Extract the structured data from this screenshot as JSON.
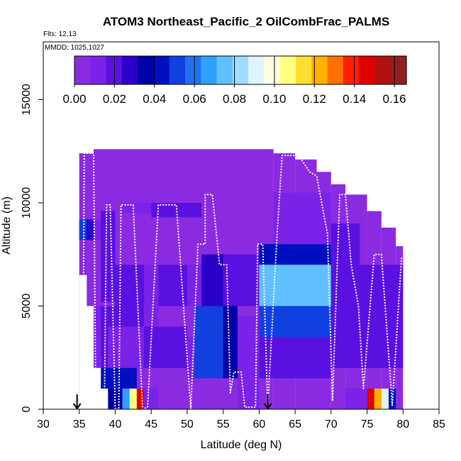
{
  "chart_data": {
    "type": "heatmap",
    "title": "ATOM3 Northeast_Pacific_2 OilCombFrac_PALMS",
    "annotations": [
      "Flts: 12,13",
      "MMDD: 1025,1027"
    ],
    "xlabel": "Latitude (deg N)",
    "ylabel": "Altitude (m)",
    "xlim": [
      30,
      85
    ],
    "ylim": [
      0,
      17800
    ],
    "x_ticks": [
      "30",
      "35",
      "40",
      "45",
      "50",
      "55",
      "60",
      "65",
      "70",
      "75",
      "80",
      "85"
    ],
    "y_ticks": [
      "0",
      "5000",
      "10000",
      "15000"
    ],
    "colorbar": {
      "placement": "top-inside",
      "range": [
        0.0,
        0.166
      ],
      "tick_values": [
        0.0,
        0.02,
        0.04,
        0.06,
        0.08,
        0.1,
        0.12,
        0.14,
        0.16
      ],
      "tick_labels": [
        "0.00",
        "0.02",
        "0.04",
        "0.06",
        "0.08",
        "0.10",
        "0.12",
        "0.14",
        "0.16"
      ],
      "colors": [
        "#8a2be2",
        "#7a22e8",
        "#5a10e0",
        "#2a00c8",
        "#0000a8",
        "#0010c0",
        "#1040e0",
        "#2070f0",
        "#30a0ff",
        "#60c0ff",
        "#a0dcff",
        "#e0f4ff",
        "#ffffe0",
        "#ffff80",
        "#ffe030",
        "#ffb000",
        "#ff7000",
        "#ff2000",
        "#e00000",
        "#b01010",
        "#902020"
      ]
    },
    "domain_columns": [
      {
        "lat0": 35,
        "lat1": 37,
        "alt_top": 12400
      },
      {
        "lat0": 37,
        "lat1": 62,
        "alt_top": 12600
      },
      {
        "lat0": 62,
        "lat1": 65,
        "alt_top": 12400
      },
      {
        "lat0": 65,
        "lat1": 68,
        "alt_top": 12100
      },
      {
        "lat0": 68,
        "lat1": 70,
        "alt_top": 11500
      },
      {
        "lat0": 70,
        "lat1": 72,
        "alt_top": 10900
      },
      {
        "lat0": 72,
        "lat1": 75,
        "alt_top": 10400
      },
      {
        "lat0": 75,
        "lat1": 77,
        "alt_top": 9600
      },
      {
        "lat0": 77,
        "lat1": 79,
        "alt_top": 8800
      },
      {
        "lat0": 79,
        "lat1": 80,
        "alt_top": 7900
      }
    ],
    "domain_bottom_edge": [
      {
        "lat0": 35,
        "lat1": 36,
        "alt_bottom": 6500
      },
      {
        "lat0": 36,
        "lat1": 37,
        "alt_bottom": 5000
      },
      {
        "lat0": 37,
        "lat1": 38,
        "alt_bottom": 2500
      },
      {
        "lat0": 38,
        "lat1": 39,
        "alt_bottom": 1000
      },
      {
        "lat0": 39,
        "lat1": 80,
        "alt_bottom": 0
      }
    ],
    "cells": [
      {
        "lat0": 35,
        "lat1": 36,
        "alt0": 8200,
        "alt1": 9200,
        "value": 0.05
      },
      {
        "lat0": 36,
        "lat1": 37,
        "alt0": 8200,
        "alt1": 9200,
        "value": 0.03
      },
      {
        "lat0": 37,
        "lat1": 38,
        "alt0": 8200,
        "alt1": 9200,
        "value": 0.008
      },
      {
        "lat0": 38,
        "lat1": 39,
        "alt0": 5200,
        "alt1": 9600,
        "value": 0.02
      },
      {
        "lat0": 39,
        "lat1": 40,
        "alt0": 5200,
        "alt1": 9600,
        "value": 0.018
      },
      {
        "lat0": 37,
        "lat1": 38,
        "alt0": 2000,
        "alt1": 5000,
        "value": 0.012
      },
      {
        "lat0": 38,
        "lat1": 40,
        "alt0": 2000,
        "alt1": 5000,
        "value": 0.022
      },
      {
        "lat0": 40,
        "lat1": 42,
        "alt0": 4000,
        "alt1": 7000,
        "value": 0.016
      },
      {
        "lat0": 42,
        "lat1": 44,
        "alt0": 4000,
        "alt1": 7000,
        "value": 0.022
      },
      {
        "lat0": 44,
        "lat1": 46,
        "alt0": 4000,
        "alt1": 7000,
        "value": 0.014
      },
      {
        "lat0": 46,
        "lat1": 50,
        "alt0": 5000,
        "alt1": 7000,
        "value": 0.02
      },
      {
        "lat0": 50,
        "lat1": 52,
        "alt0": 5000,
        "alt1": 7000,
        "value": 0.014
      },
      {
        "lat0": 52,
        "lat1": 56,
        "alt0": 5000,
        "alt1": 7500,
        "value": 0.026
      },
      {
        "lat0": 55,
        "lat1": 60,
        "alt0": 5000,
        "alt1": 7500,
        "value": 0.022
      },
      {
        "lat0": 39,
        "lat1": 44,
        "alt0": 2000,
        "alt1": 4000,
        "value": 0.012
      },
      {
        "lat0": 44,
        "lat1": 50,
        "alt0": 2000,
        "alt1": 4000,
        "value": 0.016
      },
      {
        "lat0": 50,
        "lat1": 53,
        "alt0": 1500,
        "alt1": 3500,
        "value": 0.01
      },
      {
        "lat0": 38,
        "lat1": 43,
        "alt0": 1000,
        "alt1": 2000,
        "value": 0.04
      },
      {
        "lat0": 39,
        "lat1": 41,
        "alt0": 0,
        "alt1": 1000,
        "value": 0.035
      },
      {
        "lat0": 41,
        "lat1": 42,
        "alt0": 0,
        "alt1": 1000,
        "value": 0.07
      },
      {
        "lat0": 42,
        "lat1": 43,
        "alt0": 0,
        "alt1": 1000,
        "value": 0.11
      },
      {
        "lat0": 43,
        "lat1": 44,
        "alt0": 0,
        "alt1": 1000,
        "value": 0.15
      },
      {
        "lat0": 44,
        "lat1": 46,
        "alt0": 0,
        "alt1": 1000,
        "value": 0.01
      },
      {
        "lat0": 41,
        "lat1": 45,
        "alt0": 9500,
        "alt1": 10000,
        "value": 0.012
      },
      {
        "lat0": 45,
        "lat1": 52,
        "alt0": 9300,
        "alt1": 10000,
        "value": 0.018
      },
      {
        "lat0": 51,
        "lat1": 55,
        "alt0": 1500,
        "alt1": 5000,
        "value": 0.055
      },
      {
        "lat0": 55,
        "lat1": 57,
        "alt0": 1500,
        "alt1": 5000,
        "value": 0.035
      },
      {
        "lat0": 57,
        "lat1": 60,
        "alt0": 0,
        "alt1": 4500,
        "value": 0.014
      },
      {
        "lat0": 60,
        "lat1": 70,
        "alt0": 7000,
        "alt1": 8000,
        "value": 0.045
      },
      {
        "lat0": 60,
        "lat1": 70,
        "alt0": 5000,
        "alt1": 7000,
        "value": 0.072
      },
      {
        "lat0": 60,
        "lat1": 70,
        "alt0": 3500,
        "alt1": 5000,
        "value": 0.05
      },
      {
        "lat0": 60,
        "lat1": 70,
        "alt0": 1500,
        "alt1": 3500,
        "value": 0.018
      },
      {
        "lat0": 62,
        "lat1": 70,
        "alt0": 8000,
        "alt1": 10500,
        "value": 0.012
      },
      {
        "lat0": 70,
        "lat1": 74,
        "alt0": 2000,
        "alt1": 9000,
        "value": 0.022
      },
      {
        "lat0": 74,
        "lat1": 80,
        "alt0": 2000,
        "alt1": 7000,
        "value": 0.02
      },
      {
        "lat0": 75,
        "lat1": 76,
        "alt0": 0,
        "alt1": 1000,
        "value": 0.15
      },
      {
        "lat0": 76,
        "lat1": 77,
        "alt0": 0,
        "alt1": 1000,
        "value": 0.12
      },
      {
        "lat0": 77,
        "lat1": 78,
        "alt0": 0,
        "alt1": 1000,
        "value": 0.09
      },
      {
        "lat0": 78,
        "lat1": 79,
        "alt0": 0,
        "alt1": 1000,
        "value": 0.04
      },
      {
        "lat0": 72,
        "lat1": 75,
        "alt0": 0,
        "alt1": 1000,
        "value": 0.015
      }
    ],
    "flight_track": [
      [
        35.5,
        0
      ],
      [
        35.7,
        12400
      ],
      [
        37.0,
        12400
      ],
      [
        37.3,
        0
      ],
      [
        38.5,
        100
      ],
      [
        38.8,
        9900
      ],
      [
        39.3,
        9900
      ],
      [
        40.0,
        0
      ],
      [
        40.5,
        0
      ],
      [
        40.8,
        9900
      ],
      [
        42.5,
        9900
      ],
      [
        43.8,
        0
      ],
      [
        44.5,
        100
      ],
      [
        46.0,
        9900
      ],
      [
        48.5,
        9900
      ],
      [
        50.5,
        0
      ],
      [
        51.5,
        8000
      ],
      [
        52.5,
        8000
      ],
      [
        52.5,
        10400
      ],
      [
        53.5,
        10400
      ],
      [
        54.5,
        7000
      ],
      [
        55.5,
        7000
      ],
      [
        56.0,
        800
      ],
      [
        56.5,
        1800
      ],
      [
        57.5,
        1800
      ],
      [
        58.0,
        100
      ],
      [
        59.5,
        100
      ],
      [
        59.8,
        8000
      ],
      [
        60.5,
        8000
      ],
      [
        61.2,
        100
      ],
      [
        62.5,
        8500
      ],
      [
        63.2,
        12300
      ],
      [
        65.5,
        12300
      ],
      [
        67.0,
        11500
      ],
      [
        68.0,
        11300
      ],
      [
        69.5,
        8500
      ],
      [
        70.2,
        400
      ],
      [
        71.2,
        10400
      ],
      [
        72.0,
        10400
      ],
      [
        72.8,
        7000
      ],
      [
        73.8,
        5000
      ],
      [
        74.5,
        1000
      ],
      [
        76.0,
        7500
      ],
      [
        77.0,
        7500
      ],
      [
        78.5,
        200
      ],
      [
        79.8,
        7400
      ]
    ],
    "markers": [
      {
        "lat": 34.7,
        "alt": 0,
        "symbol": "arrow-down"
      },
      {
        "lat": 61.2,
        "alt": 0,
        "symbol": "arrow-down"
      }
    ]
  }
}
